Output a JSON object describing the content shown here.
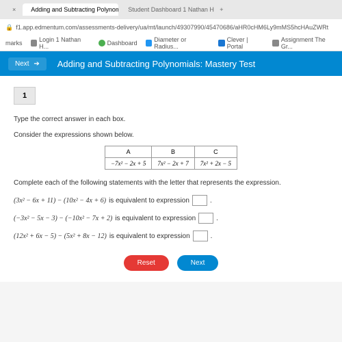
{
  "browser": {
    "tabs": [
      {
        "label": "",
        "active": false
      },
      {
        "label": "Adding and Subtracting Polynom",
        "active": true,
        "icon_color": "#e53935"
      },
      {
        "label": "Student Dashboard 1 Nathan H",
        "active": false,
        "icon_color": "#888"
      }
    ],
    "url": "f1.app.edmentum.com/assessments-delivery/ua/mt/launch/49307990/45470686/aHR0cHM6Ly9mMS5hcHAuZWRt",
    "bookmarks": [
      {
        "label": "marks"
      },
      {
        "label": "Login 1 Nathan H..."
      },
      {
        "label": "Dashboard"
      },
      {
        "label": "Diameter or Radius..."
      },
      {
        "label": "Clever | Portal"
      },
      {
        "label": "Assignment The Gr..."
      }
    ]
  },
  "header": {
    "next_label": "Next",
    "title": "Adding and Subtracting Polynomials: Mastery Test"
  },
  "question": {
    "number": "1",
    "instruction": "Type the correct answer in each box.",
    "sub_instruction": "Consider the expressions shown below.",
    "table": {
      "headers": [
        "A",
        "B",
        "C"
      ],
      "cells": [
        "−7x² − 2x + 5",
        "7x² − 2x + 7",
        "7x² + 2x − 5"
      ]
    },
    "complete_instruction": "Complete each of the following statements with the letter that represents the expression.",
    "statements": [
      {
        "expr": "(3x² − 6x + 11) − (10x² − 4x + 6)",
        "tail": "is equivalent to expression"
      },
      {
        "expr": "(−3x² − 5x − 3) − (−10x² − 7x + 2)",
        "tail": "is equivalent to expression"
      },
      {
        "expr": "(12x² + 6x − 5) − (5x² + 8x − 12)",
        "tail": "is equivalent to expression"
      }
    ],
    "buttons": {
      "reset": "Reset",
      "next": "Next"
    }
  },
  "colors": {
    "header_bg": "#0288d1",
    "reset_bg": "#e53935",
    "next_bg": "#0288d1"
  }
}
